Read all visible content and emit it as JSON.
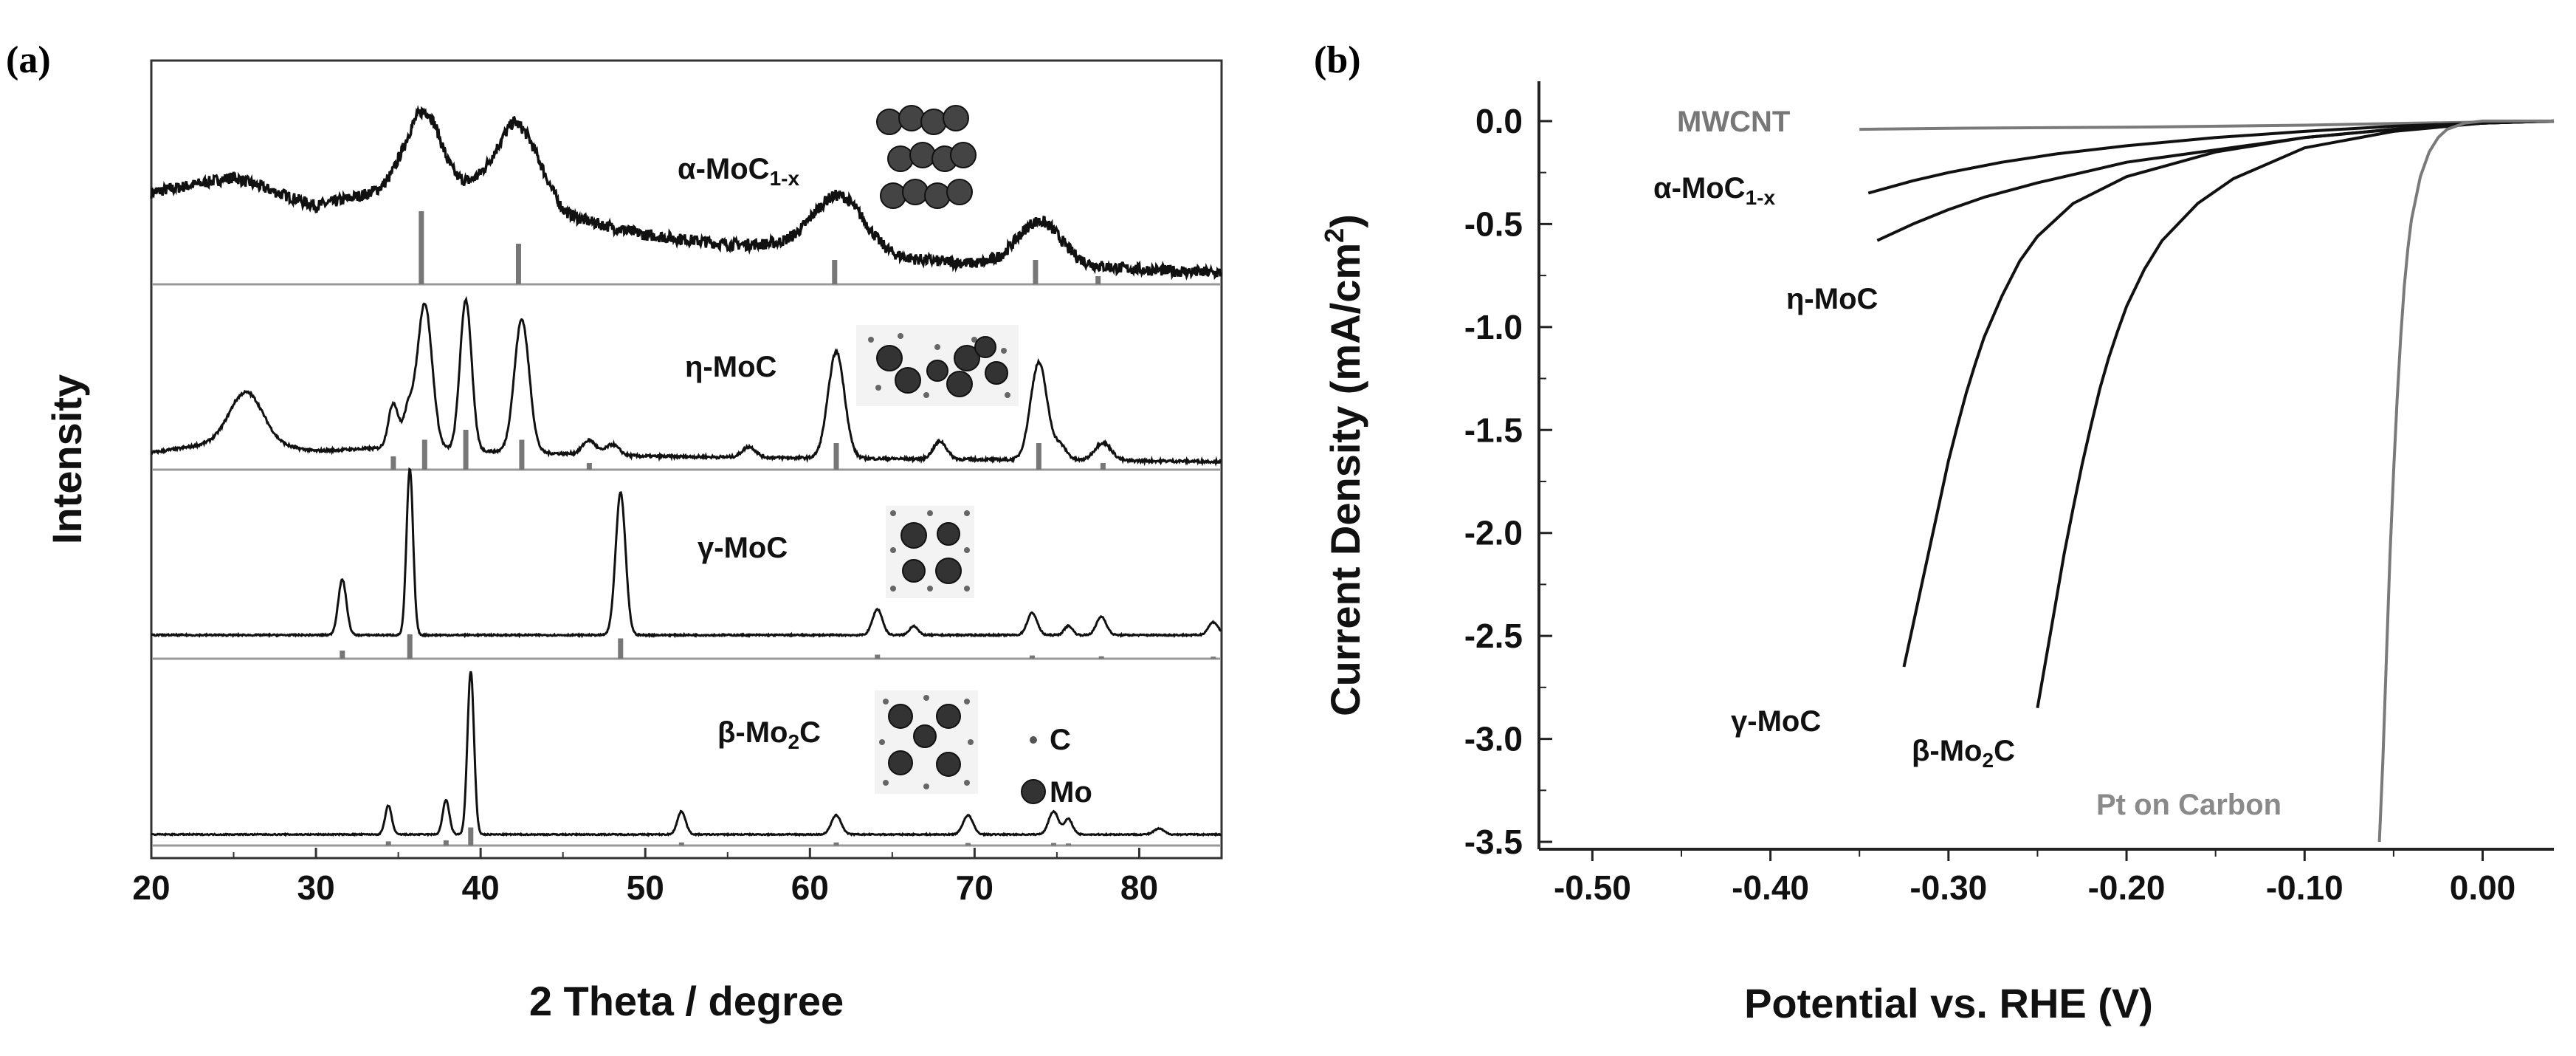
{
  "chart_data": [
    {
      "panel": "(a)",
      "type": "line",
      "xlabel": "2 Theta / degree",
      "ylabel": "Intensity",
      "xlim": [
        20,
        85
      ],
      "xticks": [
        20,
        30,
        40,
        50,
        60,
        70,
        80
      ],
      "legend_items": [
        "C",
        "Mo"
      ],
      "series": [
        {
          "name": "α-MoC1-x",
          "label_main": "α-MoC",
          "label_sub": "1-x",
          "background": [
            [
              20,
              0.42
            ],
            [
              25,
              0.5
            ],
            [
              30,
              0.35
            ],
            [
              35,
              0.45
            ],
            [
              38,
              0.4
            ],
            [
              42,
              0.55
            ],
            [
              45,
              0.3
            ],
            [
              50,
              0.2
            ],
            [
              55,
              0.15
            ],
            [
              60,
              0.15
            ],
            [
              65,
              0.08
            ],
            [
              70,
              0.05
            ],
            [
              75,
              0.05
            ],
            [
              80,
              0.02
            ],
            [
              85,
              0.0
            ]
          ],
          "peaks": [
            [
              36.6,
              0.42,
              1.1
            ],
            [
              42.4,
              0.25,
              1.3
            ],
            [
              61.8,
              0.28,
              1.5
            ],
            [
              73.9,
              0.22,
              1.3
            ]
          ],
          "ref_peaks": [
            [
              36.4,
              0.9
            ],
            [
              42.3,
              0.5
            ],
            [
              61.5,
              0.3
            ],
            [
              73.7,
              0.3
            ],
            [
              77.5,
              0.1
            ]
          ],
          "noise": 0.06
        },
        {
          "name": "η-MoC",
          "label_main": "η-MoC",
          "label_sub": "",
          "background": [
            [
              20,
              0.05
            ],
            [
              25,
              0.12
            ],
            [
              30,
              0.06
            ],
            [
              35,
              0.08
            ],
            [
              40,
              0.06
            ],
            [
              50,
              0.03
            ],
            [
              60,
              0.02
            ],
            [
              85,
              0.0
            ]
          ],
          "peaks": [
            [
              25.8,
              0.28,
              1.0
            ],
            [
              34.7,
              0.25,
              0.3
            ],
            [
              35.6,
              0.2,
              0.3
            ],
            [
              36.6,
              0.82,
              0.45
            ],
            [
              39.1,
              0.85,
              0.35
            ],
            [
              42.5,
              0.75,
              0.45
            ],
            [
              46.6,
              0.08,
              0.4
            ],
            [
              48.0,
              0.06,
              0.4
            ],
            [
              56.3,
              0.06,
              0.4
            ],
            [
              61.6,
              0.6,
              0.5
            ],
            [
              67.9,
              0.1,
              0.4
            ],
            [
              73.9,
              0.55,
              0.5
            ],
            [
              75.2,
              0.08,
              0.4
            ],
            [
              77.8,
              0.1,
              0.5
            ]
          ],
          "ref_peaks": [
            [
              34.7,
              0.2
            ],
            [
              36.6,
              0.45
            ],
            [
              39.1,
              0.6
            ],
            [
              42.5,
              0.45
            ],
            [
              46.6,
              0.1
            ],
            [
              61.6,
              0.4
            ],
            [
              73.9,
              0.4
            ],
            [
              77.8,
              0.1
            ]
          ],
          "noise": 0.015
        },
        {
          "name": "γ-MoC",
          "label_main": "γ-MoC",
          "label_sub": "",
          "background": [
            [
              20,
              0.0
            ],
            [
              85,
              0.0
            ]
          ],
          "peaks": [
            [
              31.6,
              0.3,
              0.25
            ],
            [
              35.7,
              0.9,
              0.2
            ],
            [
              48.5,
              0.77,
              0.3
            ],
            [
              64.1,
              0.14,
              0.3
            ],
            [
              66.3,
              0.05,
              0.25
            ],
            [
              73.5,
              0.12,
              0.3
            ],
            [
              75.7,
              0.05,
              0.25
            ],
            [
              77.7,
              0.1,
              0.3
            ],
            [
              84.5,
              0.07,
              0.3
            ]
          ],
          "ref_peaks": [
            [
              31.6,
              0.2
            ],
            [
              35.7,
              0.6
            ],
            [
              48.5,
              0.5
            ],
            [
              64.1,
              0.1
            ],
            [
              73.5,
              0.08
            ],
            [
              77.7,
              0.06
            ],
            [
              84.5,
              0.05
            ]
          ],
          "noise": 0.008
        },
        {
          "name": "β-Mo2C",
          "label_main": "β-Mo",
          "label_sub": "2",
          "label_tail": "C",
          "background": [
            [
              20,
              0.0
            ],
            [
              85,
              0.0
            ]
          ],
          "peaks": [
            [
              34.4,
              0.15,
              0.2
            ],
            [
              37.9,
              0.18,
              0.2
            ],
            [
              39.4,
              0.85,
              0.2
            ],
            [
              52.2,
              0.12,
              0.25
            ],
            [
              61.6,
              0.1,
              0.3
            ],
            [
              69.6,
              0.1,
              0.3
            ],
            [
              74.8,
              0.12,
              0.3
            ],
            [
              75.7,
              0.08,
              0.25
            ],
            [
              81.2,
              0.03,
              0.3
            ]
          ],
          "ref_peaks": [
            [
              34.4,
              0.08
            ],
            [
              37.9,
              0.1
            ],
            [
              39.4,
              0.35
            ],
            [
              52.2,
              0.06
            ],
            [
              61.6,
              0.06
            ],
            [
              69.6,
              0.05
            ],
            [
              74.8,
              0.05
            ],
            [
              75.7,
              0.04
            ]
          ],
          "noise": 0.006
        }
      ]
    },
    {
      "panel": "(b)",
      "type": "line",
      "xlabel": "Potential vs. RHE (V)",
      "ylabel_main": "Current Density (mA/cm",
      "ylabel_sup": "2",
      "ylabel_tail": ")",
      "xlim": [
        -0.53,
        0.04
      ],
      "ylim": [
        -3.5,
        0.05
      ],
      "xticks": [
        "-0.50",
        "-0.40",
        "-0.30",
        "-0.20",
        "-0.10",
        "0.00"
      ],
      "yticks": [
        "0.0",
        "-0.5",
        "-1.0",
        "-1.5",
        "-2.0",
        "-2.5",
        "-3.0",
        "-3.5"
      ],
      "series": [
        {
          "name": "MWCNT",
          "label_main": "MWCNT",
          "label_sub": "",
          "color": "#7a7a7a",
          "x": [
            -0.35,
            -0.3,
            -0.2,
            -0.1,
            -0.05,
            0.0,
            0.04
          ],
          "y": [
            -0.04,
            -0.035,
            -0.03,
            -0.02,
            -0.012,
            -0.005,
            -0.002
          ]
        },
        {
          "name": "α-MoC1-x",
          "label_main": "α-MoC",
          "label_sub": "1-x",
          "color": "#111111",
          "x": [
            -0.345,
            -0.32,
            -0.3,
            -0.27,
            -0.24,
            -0.2,
            -0.15,
            -0.1,
            -0.05,
            0.0,
            0.04
          ],
          "y": [
            -0.35,
            -0.29,
            -0.25,
            -0.2,
            -0.16,
            -0.12,
            -0.08,
            -0.05,
            -0.025,
            -0.01,
            0.0
          ]
        },
        {
          "name": "η-MoC",
          "label_main": "η-MoC",
          "label_sub": "",
          "color": "#111111",
          "x": [
            -0.34,
            -0.32,
            -0.3,
            -0.28,
            -0.25,
            -0.22,
            -0.2,
            -0.15,
            -0.1,
            -0.05,
            0.0,
            0.04
          ],
          "y": [
            -0.58,
            -0.5,
            -0.43,
            -0.37,
            -0.3,
            -0.24,
            -0.2,
            -0.14,
            -0.08,
            -0.04,
            -0.01,
            0.0
          ]
        },
        {
          "name": "γ-MoC",
          "label_main": "γ-MoC",
          "label_sub": "",
          "color": "#111111",
          "x": [
            -0.325,
            -0.32,
            -0.315,
            -0.31,
            -0.305,
            -0.3,
            -0.295,
            -0.29,
            -0.285,
            -0.28,
            -0.27,
            -0.26,
            -0.25,
            -0.23,
            -0.2,
            -0.15,
            -0.1,
            -0.05,
            0.0,
            0.04
          ],
          "y": [
            -2.65,
            -2.45,
            -2.25,
            -2.05,
            -1.85,
            -1.65,
            -1.48,
            -1.32,
            -1.18,
            -1.05,
            -0.85,
            -0.68,
            -0.56,
            -0.4,
            -0.27,
            -0.15,
            -0.08,
            -0.04,
            -0.01,
            0.0
          ]
        },
        {
          "name": "β-Mo2C",
          "label_main": "β-Mo",
          "label_sub": "2",
          "label_tail": "C",
          "color": "#111111",
          "x": [
            -0.25,
            -0.245,
            -0.24,
            -0.235,
            -0.23,
            -0.225,
            -0.22,
            -0.215,
            -0.21,
            -0.205,
            -0.2,
            -0.19,
            -0.18,
            -0.16,
            -0.14,
            -0.1,
            -0.05,
            0.0,
            0.04
          ],
          "y": [
            -2.85,
            -2.6,
            -2.35,
            -2.1,
            -1.88,
            -1.67,
            -1.48,
            -1.3,
            -1.15,
            -1.02,
            -0.9,
            -0.72,
            -0.58,
            -0.4,
            -0.28,
            -0.13,
            -0.05,
            -0.01,
            0.0
          ]
        },
        {
          "name": "Pt on Carbon",
          "label_main": "Pt on Carbon",
          "label_sub": "",
          "color": "#7a7a7a",
          "x": [
            -0.058,
            -0.056,
            -0.054,
            -0.052,
            -0.05,
            -0.048,
            -0.046,
            -0.044,
            -0.042,
            -0.04,
            -0.035,
            -0.03,
            -0.025,
            -0.02,
            -0.01,
            0.0,
            0.04
          ],
          "y": [
            -3.5,
            -3.1,
            -2.6,
            -2.1,
            -1.7,
            -1.35,
            -1.05,
            -0.8,
            -0.62,
            -0.48,
            -0.27,
            -0.15,
            -0.08,
            -0.04,
            -0.01,
            0.0,
            0.0
          ]
        }
      ]
    }
  ]
}
